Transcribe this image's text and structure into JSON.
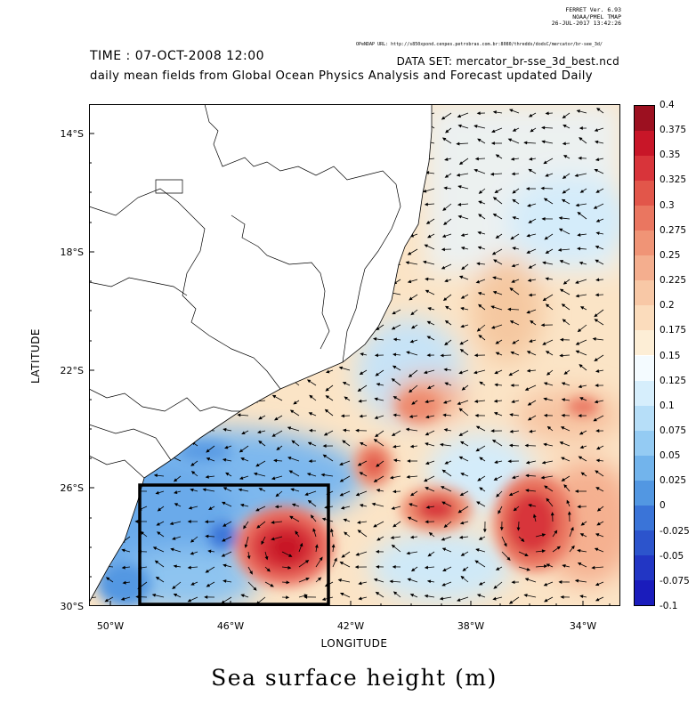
{
  "header": {
    "ferret_lines": [
      "FERRET Ver. 6.93",
      "NOAA/PMEL TMAP",
      "26-JUL-2017 13:42:26"
    ],
    "opendap_url": "OPeNDAP URL: http://s850xpond.cenpes.petrobras.com.br:8080/thredds/dodsC/mercator/br-see_3d/",
    "time": "TIME : 07-OCT-2008 12:00",
    "dataset": "DATA SET: mercator_br-sse_3d_best.ncd",
    "description": "daily mean fields from Global Ocean Physics Analysis and Forecast updated Daily"
  },
  "axes": {
    "xlabel": "LONGITUDE",
    "ylabel": "LATITUDE",
    "x_ticks": [
      "50°W",
      "46°W",
      "42°W",
      "38°W",
      "34°W"
    ],
    "y_ticks": [
      "14°S",
      "18°S",
      "22°S",
      "26°S",
      "30°S"
    ]
  },
  "colorbar": {
    "ticks": [
      "0.4",
      "0.375",
      "0.35",
      "0.325",
      "0.3",
      "0.275",
      "0.25",
      "0.225",
      "0.2",
      "0.175",
      "0.15",
      "0.125",
      "0.1",
      "0.075",
      "0.05",
      "0.025",
      "0",
      "-0.025",
      "-0.05",
      "-0.075",
      "-0.1"
    ],
    "colors": [
      "#9c1020",
      "#c81628",
      "#d8343a",
      "#e2564a",
      "#ea7660",
      "#f09476",
      "#f4ae8e",
      "#f8c8a6",
      "#fbdcbc",
      "#fdeed6",
      "#f4fbff",
      "#d6eefc",
      "#b6def8",
      "#94cbf3",
      "#72b4ec",
      "#5297e2",
      "#3a74d8",
      "#2c54cc",
      "#2236c4",
      "#1a1cbc"
    ]
  },
  "caption": "Sea surface height (m)"
}
